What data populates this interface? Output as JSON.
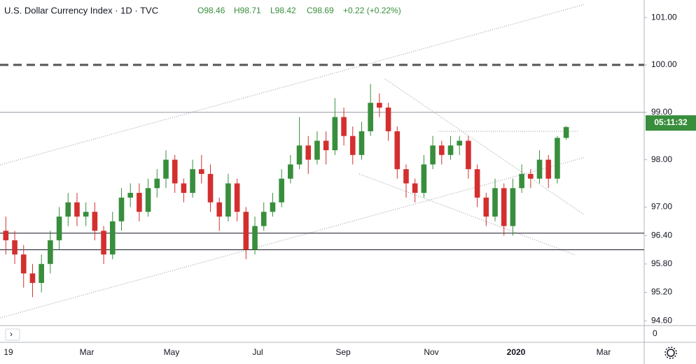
{
  "chart_data": {
    "type": "candlestick",
    "title": "U.S. Dollar Currency Index · 1D · TVC",
    "ohlc_text": [
      "O98.46",
      "H98.71",
      "L98.42",
      "C98.69",
      "+0.22 (+0.22%)"
    ],
    "price_timer": "05:11:32",
    "up_color": "#388e3c",
    "down_color": "#d32f2f",
    "open": [
      96.5,
      96.3,
      96.0,
      95.6,
      95.4,
      95.8,
      96.3,
      96.8,
      97.1,
      96.8,
      96.9,
      96.5,
      96.0,
      96.7,
      97.2,
      97.3,
      96.9,
      97.4,
      97.6,
      98.0,
      97.5,
      97.3,
      97.8,
      97.7,
      97.1,
      96.8,
      97.5,
      96.9,
      96.1,
      96.6,
      96.9,
      97.1,
      97.6,
      97.9,
      98.3,
      98.0,
      98.4,
      98.2,
      98.9,
      98.5,
      98.1,
      98.6,
      99.2,
      99.1,
      98.6,
      97.8,
      97.5,
      97.3,
      97.9,
      98.3,
      98.1,
      98.3,
      98.4,
      97.8,
      97.2,
      96.8,
      97.4,
      96.6,
      97.4,
      97.7,
      97.6,
      98.0,
      97.6,
      98.46
    ],
    "high": [
      96.8,
      96.5,
      96.2,
      95.8,
      96.0,
      96.5,
      97.0,
      97.3,
      97.3,
      97.1,
      97.1,
      96.6,
      96.9,
      97.4,
      97.5,
      97.5,
      97.6,
      97.8,
      98.2,
      98.1,
      97.6,
      98.0,
      98.1,
      97.9,
      97.2,
      97.7,
      97.6,
      97.0,
      96.8,
      97.1,
      97.3,
      97.8,
      98.1,
      98.9,
      98.5,
      98.6,
      98.6,
      99.3,
      99.1,
      98.7,
      98.8,
      99.6,
      99.4,
      99.2,
      98.7,
      97.9,
      97.6,
      98.1,
      98.5,
      98.4,
      98.5,
      98.5,
      98.5,
      97.9,
      97.3,
      97.6,
      97.5,
      97.6,
      97.9,
      97.8,
      98.2,
      98.1,
      98.5,
      98.71
    ],
    "low": [
      96.0,
      95.8,
      95.3,
      95.1,
      95.2,
      95.6,
      96.1,
      96.6,
      96.6,
      96.6,
      96.3,
      95.8,
      95.9,
      96.5,
      97.0,
      96.7,
      96.8,
      97.2,
      97.4,
      97.3,
      97.1,
      97.2,
      97.5,
      96.9,
      96.5,
      96.7,
      96.7,
      95.9,
      96.0,
      96.5,
      96.8,
      97.0,
      97.5,
      97.8,
      97.7,
      97.9,
      97.9,
      98.1,
      98.3,
      97.9,
      98.0,
      98.5,
      98.9,
      98.4,
      97.6,
      97.2,
      97.1,
      97.2,
      97.8,
      97.9,
      98.0,
      98.1,
      97.6,
      97.0,
      96.6,
      96.7,
      96.4,
      96.4,
      97.3,
      97.4,
      97.5,
      97.4,
      97.5,
      98.42
    ],
    "close": [
      96.3,
      96.0,
      95.6,
      95.4,
      95.8,
      96.3,
      96.8,
      97.1,
      96.8,
      96.9,
      96.5,
      96.0,
      96.7,
      97.2,
      97.3,
      96.9,
      97.4,
      97.6,
      98.0,
      97.5,
      97.3,
      97.8,
      97.7,
      97.1,
      96.8,
      97.5,
      96.9,
      96.1,
      96.6,
      96.9,
      97.1,
      97.6,
      97.9,
      98.3,
      98.0,
      98.4,
      98.2,
      98.9,
      98.5,
      98.1,
      98.6,
      99.2,
      99.1,
      98.6,
      97.8,
      97.5,
      97.3,
      97.9,
      98.3,
      98.1,
      98.3,
      98.4,
      97.8,
      97.2,
      96.8,
      97.4,
      96.6,
      97.4,
      97.7,
      97.6,
      98.0,
      97.6,
      98.46,
      98.69
    ],
    "x_labels": [
      "19",
      "Mar",
      "May",
      "Jul",
      "Sep",
      "Nov",
      "2020",
      "Mar"
    ],
    "ylim": [
      94.5,
      101.37
    ],
    "yticks": [
      {
        "value": 101,
        "label": "101.00"
      },
      {
        "value": 100,
        "label": "100.00"
      },
      {
        "value": 99,
        "label": "99.00"
      },
      {
        "value": 98,
        "label": "98.00"
      },
      {
        "value": 97,
        "label": "97.00"
      },
      {
        "value": 96.4,
        "label": "96.40"
      },
      {
        "value": 95.8,
        "label": "95.80"
      },
      {
        "value": 95.2,
        "label": "95.20"
      },
      {
        "value": 94.6,
        "label": "94.60"
      }
    ],
    "volume_axis_label": "0",
    "hlines": [
      {
        "value": 100,
        "style": "dashed"
      },
      {
        "value": 99,
        "style": "thin"
      },
      {
        "value": 96.45,
        "style": "solid"
      },
      {
        "value": 96.1,
        "style": "solid"
      }
    ]
  }
}
